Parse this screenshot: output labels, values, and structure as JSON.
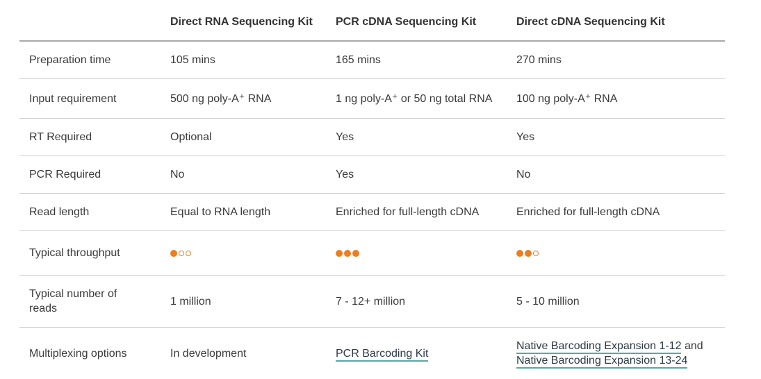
{
  "table": {
    "headers": [
      "",
      "Direct RNA Sequencing Kit",
      "PCR cDNA Sequencing Kit",
      "Direct cDNA Sequencing Kit"
    ],
    "rows": {
      "prep_time": {
        "label": "Preparation time",
        "values": [
          "105 mins",
          "165 mins",
          "270 mins"
        ]
      },
      "input_req": {
        "label": "Input requirement",
        "values": [
          "500 ng poly-A⁺ RNA",
          "1 ng poly-A⁺ or 50 ng total RNA",
          "100 ng poly-A⁺ RNA"
        ]
      },
      "rt_required": {
        "label": "RT Required",
        "values": [
          "Optional",
          "Yes",
          "Yes"
        ]
      },
      "pcr_required": {
        "label": "PCR Required",
        "values": [
          "No",
          "Yes",
          "No"
        ]
      },
      "read_length": {
        "label": "Read length",
        "values": [
          "Equal to RNA length",
          "Enriched for full-length cDNA",
          "Enriched for full-length cDNA"
        ]
      },
      "throughput": {
        "label": "Typical throughput",
        "ratings": [
          1,
          3,
          2
        ],
        "max": 3
      },
      "num_reads": {
        "label": "Typical number of reads",
        "values": [
          "1 million",
          "7 - 12+ million",
          "5 - 10 million"
        ]
      },
      "multiplexing": {
        "label": "Multiplexing options",
        "direct_rna": "In development",
        "pcr_cdna_link": "PCR Barcoding Kit",
        "direct_cdna_link1": "Native Barcoding Expansion 1-12",
        "direct_cdna_and": "and",
        "direct_cdna_link2": "Native Barcoding Expansion 13-24"
      }
    }
  },
  "colors": {
    "accent_orange": "#ee7d1f",
    "link_underline": "#5aa6a6",
    "row_divider": "#cfcfcf"
  }
}
